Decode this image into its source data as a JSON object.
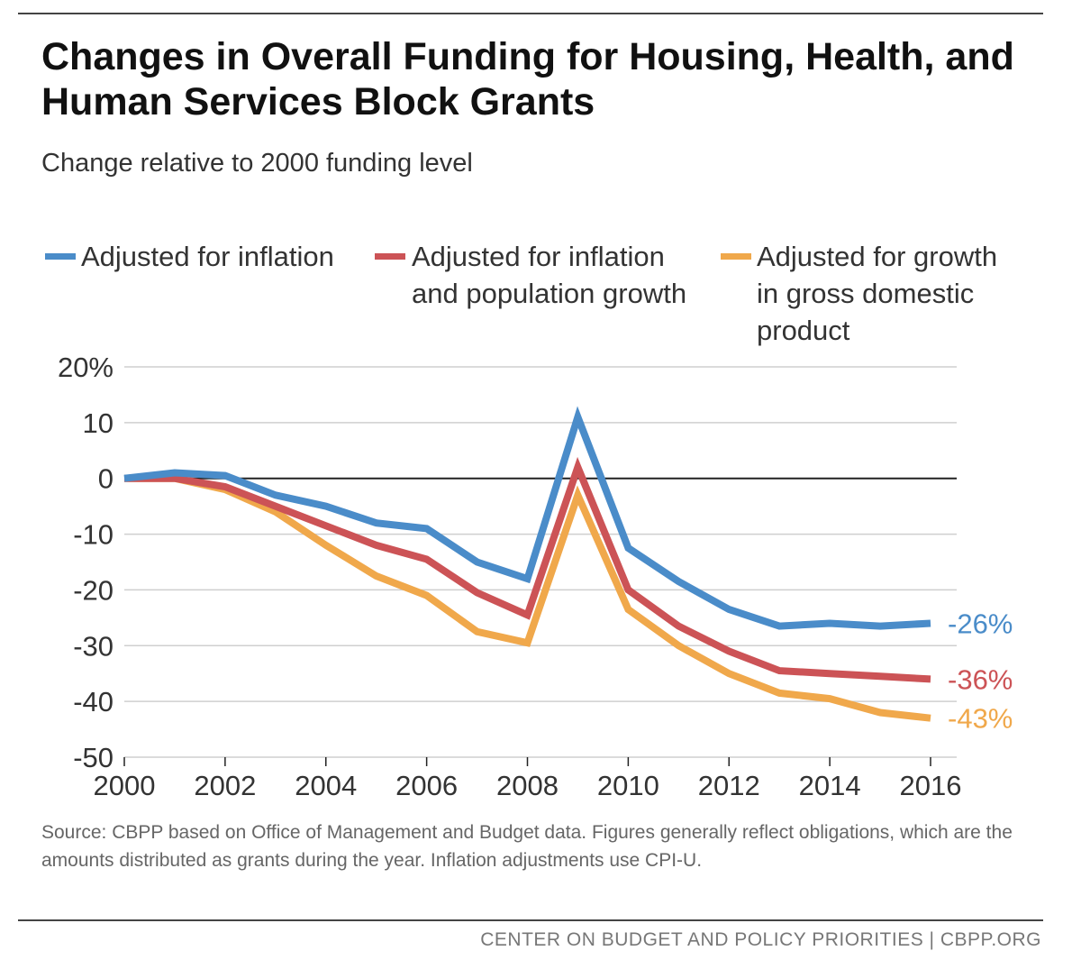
{
  "title": "Changes in Overall Funding for Housing, Health, and Human Services Block Grants",
  "subtitle": "Change relative to 2000 funding level",
  "source": "Source: CBPP based on Office of Management and Budget data. Figures generally reflect obligations, which are the amounts distributed as grants during the year.  Inflation adjustments use CPI-U.",
  "footer": "CENTER ON BUDGET AND POLICY PRIORITIES | CBPP.ORG",
  "chart_data": {
    "type": "line",
    "title": "Changes in Overall Funding for Housing, Health, and Human Services Block Grants",
    "subtitle": "Change relative to 2000 funding level",
    "x": [
      2000,
      2001,
      2002,
      2003,
      2004,
      2005,
      2006,
      2007,
      2008,
      2009,
      2010,
      2011,
      2012,
      2013,
      2014,
      2015,
      2016
    ],
    "xticks": [
      "2000",
      "2002",
      "2004",
      "2006",
      "2008",
      "2010",
      "2012",
      "2014",
      "2016"
    ],
    "yticks": [
      "20%",
      "10",
      "0",
      "-10",
      "-20",
      "-30",
      "-40",
      "-50"
    ],
    "ylim": [
      -50,
      20
    ],
    "xlim": [
      2000,
      2016
    ],
    "grid": true,
    "legend_position": "top",
    "series": [
      {
        "name": "Adjusted for inflation",
        "color": "#4a8cc9",
        "values": [
          0,
          1,
          0.5,
          -3,
          -5,
          -8,
          -9,
          -15,
          -18,
          11,
          -12.5,
          -18.5,
          -23.5,
          -26.5,
          -26,
          -26.5,
          -26
        ],
        "end_label": "-26%"
      },
      {
        "name": "Adjusted for inflation\nand population growth",
        "color": "#cc5356",
        "values": [
          0,
          0,
          -1.5,
          -5,
          -8.5,
          -12,
          -14.5,
          -20.5,
          -24.5,
          2,
          -20,
          -26.5,
          -31,
          -34.5,
          -35,
          -35.5,
          -36
        ],
        "end_label": "-36%"
      },
      {
        "name": "Adjusted for growth\nin gross domestic\nproduct",
        "color": "#f0a84b",
        "values": [
          0,
          0,
          -2,
          -6,
          -12,
          -17.5,
          -21,
          -27.5,
          -29.5,
          -3,
          -23.5,
          -30,
          -35,
          -38.5,
          -39.5,
          -42,
          -43
        ],
        "end_label": "-43%"
      }
    ]
  }
}
